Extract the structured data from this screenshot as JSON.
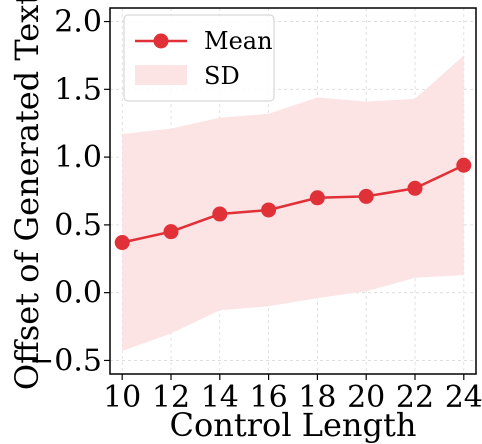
{
  "chart_data": {
    "type": "line",
    "xlabel": "Control Length",
    "ylabel": "Offset of Generated Text",
    "x": [
      10,
      12,
      14,
      16,
      18,
      20,
      22,
      24
    ],
    "xticks": [
      "10",
      "12",
      "14",
      "16",
      "18",
      "20",
      "22",
      "24"
    ],
    "ylim": [
      -0.6,
      2.1
    ],
    "yticks": [
      "−0.5",
      "0.0",
      "0.5",
      "1.0",
      "1.5",
      "2.0"
    ],
    "ytick_values": [
      -0.5,
      0.0,
      0.5,
      1.0,
      1.5,
      2.0
    ],
    "grid": true,
    "legend_position": "top-left",
    "series": [
      {
        "name": "Mean",
        "values": [
          0.37,
          0.45,
          0.58,
          0.61,
          0.7,
          0.71,
          0.77,
          0.94
        ],
        "color": "#e03038"
      }
    ],
    "band": {
      "name": "SD",
      "upper": [
        1.17,
        1.21,
        1.29,
        1.32,
        1.44,
        1.41,
        1.43,
        1.75
      ],
      "lower": [
        -0.43,
        -0.3,
        -0.13,
        -0.1,
        -0.04,
        0.01,
        0.11,
        0.13
      ],
      "color": "#fce3e4"
    }
  }
}
